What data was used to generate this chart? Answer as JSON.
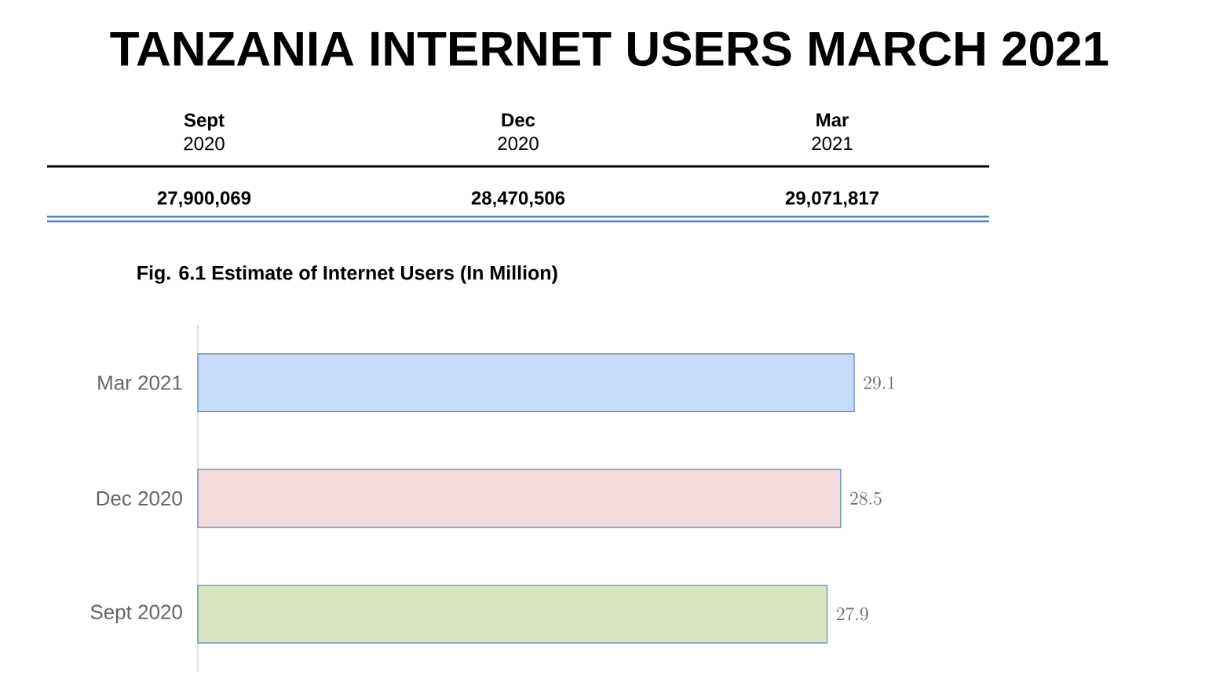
{
  "chart_data": [
    {
      "type": "other",
      "title": "TANZANIA INTERNET USERS MARCH 2021",
      "categories": [
        "**Sept** 2020",
        "**Dec** 2020",
        "**Mar** 2021"
      ],
      "values": [
        27900069,
        28470506,
        29071817
      ],
      "value_labels": [
        "27,900,069",
        "28,470,506",
        "29,071,817"
      ]
    },
    {
      "type": "bar",
      "orientation": "horizontal",
      "title": "Fig. 6.1 Estimate of Internet Users (In Million)",
      "categories": [
        "Mar 2021",
        "Dec 2020",
        "Sept 2020"
      ],
      "values": [
        29.1,
        28.5,
        27.9
      ],
      "colors": [
        "#c9dbfa",
        "#f2dcdb",
        "#d7e4bd"
      ],
      "tick_labels": "y",
      "data_labels": true
    }
  ]
}
